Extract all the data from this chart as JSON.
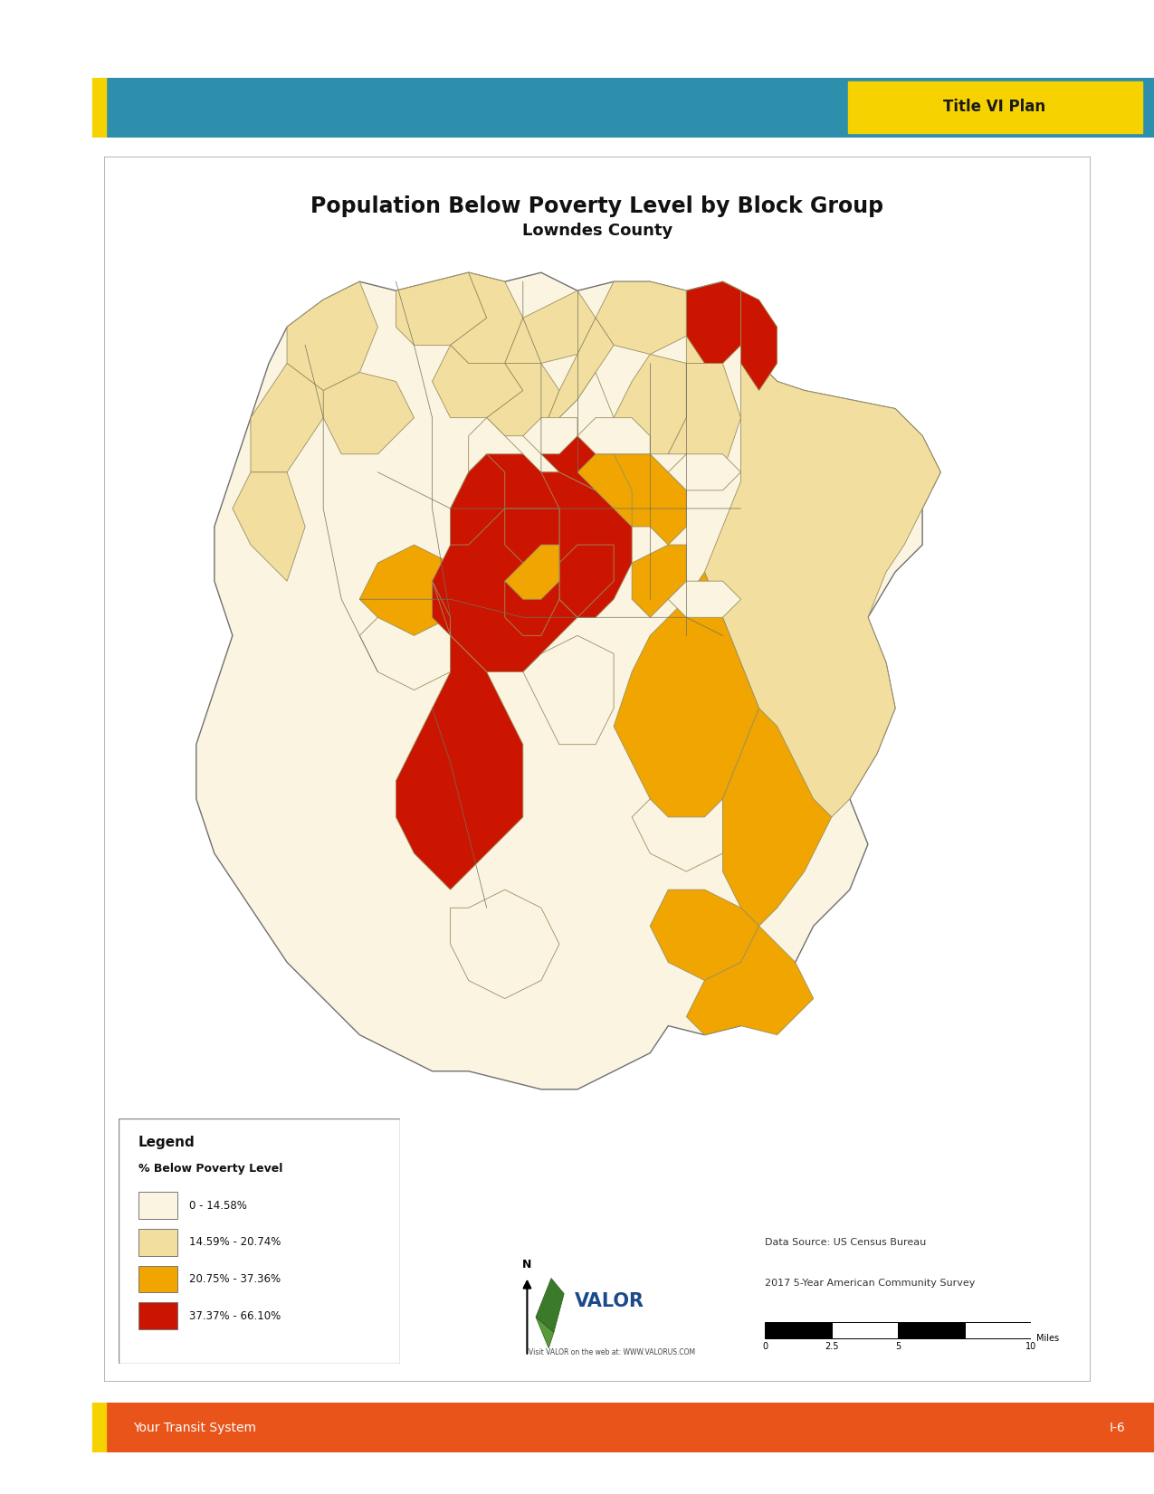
{
  "page_bg": "#ffffff",
  "header_bar_color": "#2e8fad",
  "header_bar_yellow_accent": "#f5d200",
  "header_title_text": "Title VI Plan",
  "header_title_bg": "#f5d200",
  "header_title_color": "#1a1a1a",
  "footer_bar_color": "#e8541a",
  "footer_bar_yellow_accent": "#f5d200",
  "footer_left_text": "Your Transit System",
  "footer_right_text": "I-6",
  "footer_text_color": "#ffffff",
  "map_title": "Population Below Poverty Level by Block Group",
  "map_subtitle": "Lowndes County",
  "map_frame_bg": "#ffffff",
  "map_frame_border": "#aaaaaa",
  "legend_title": "Legend",
  "legend_subtitle": "% Below Poverty Level",
  "legend_items": [
    {
      "label": "0 - 14.58%",
      "color": "#faf4e1"
    },
    {
      "label": "14.59% - 20.74%",
      "color": "#f2dfa0"
    },
    {
      "label": "20.75% - 37.36%",
      "color": "#f0a500"
    },
    {
      "label": "37.37% - 66.10%",
      "color": "#cc1500"
    }
  ],
  "datasource_line1": "Data Source: US Census Bureau",
  "datasource_line2": "2017 5-Year American Community Survey",
  "valor_text": "VALOR",
  "valor_url": "Visit VALOR on the web at: WWW.VALORUS.COM",
  "map_colors": {
    "lightest": "#faf4e1",
    "light": "#f2dfa0",
    "orange": "#f0a500",
    "red": "#cc1500",
    "border": "#b0a070"
  }
}
